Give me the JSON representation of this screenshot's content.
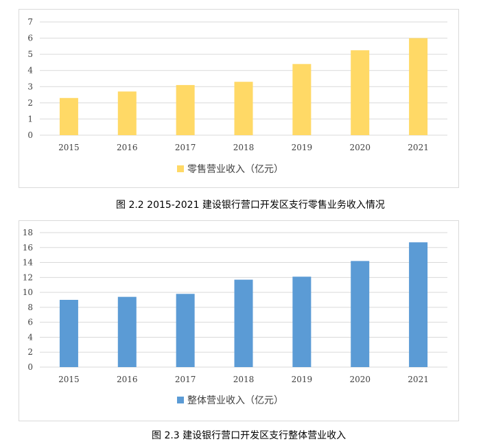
{
  "chart_data": [
    {
      "type": "bar",
      "categories": [
        "2015",
        "2016",
        "2017",
        "2018",
        "2019",
        "2020",
        "2021"
      ],
      "series": [
        {
          "name": "零售营业收入（亿元）",
          "values": [
            2.3,
            2.7,
            3.1,
            3.3,
            4.4,
            5.25,
            6.0
          ],
          "color": "#FFD966"
        }
      ],
      "ylim": [
        0,
        7
      ],
      "yticks": [
        0,
        1,
        2,
        3,
        4,
        5,
        6,
        7
      ],
      "grid": true,
      "legend": "bottom-center",
      "caption": "图 2.2  2015-2021 建设银行营口开发区支行零售业务收入情况"
    },
    {
      "type": "bar",
      "categories": [
        "2015",
        "2016",
        "2017",
        "2018",
        "2019",
        "2020",
        "2021"
      ],
      "series": [
        {
          "name": "整体营业收入（亿元）",
          "values": [
            9.0,
            9.4,
            9.8,
            11.7,
            12.1,
            14.2,
            16.7
          ],
          "color": "#5B9BD5"
        }
      ],
      "ylim": [
        0,
        18
      ],
      "yticks": [
        0,
        2,
        4,
        6,
        8,
        10,
        12,
        14,
        16,
        18
      ],
      "grid": true,
      "legend": "bottom-center",
      "caption": "图 2.3  建设银行营口开发区支行整体营业收入"
    }
  ]
}
